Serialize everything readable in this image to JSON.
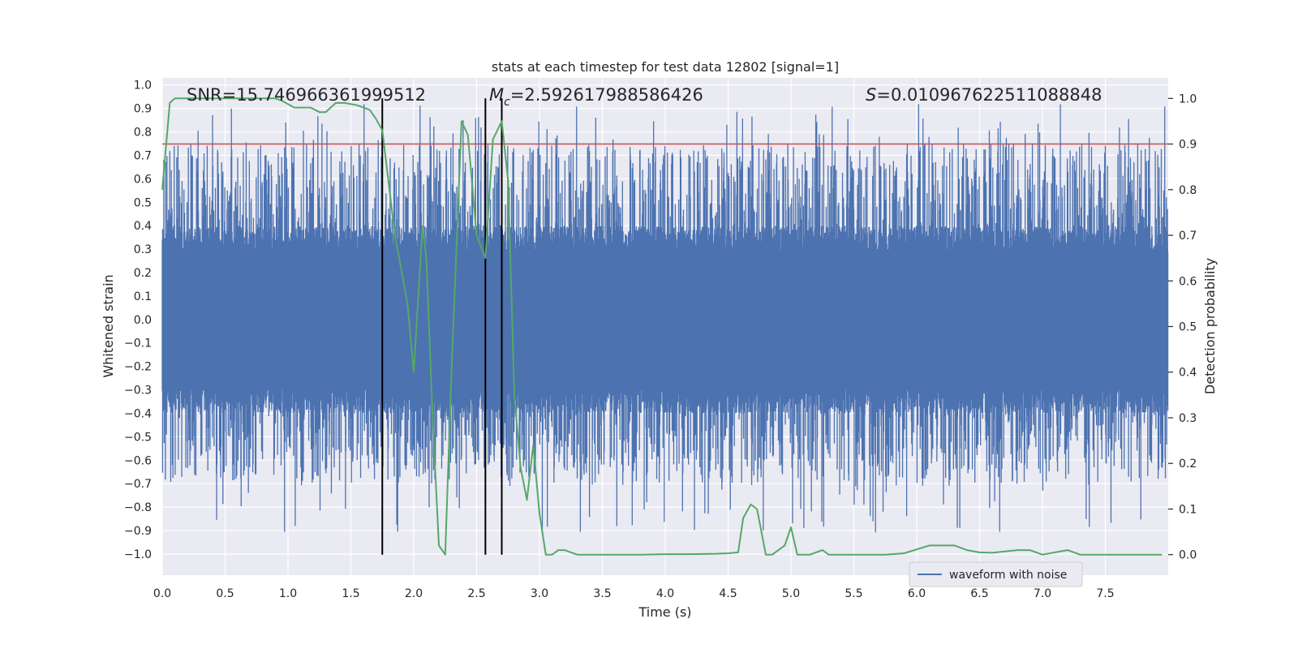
{
  "chart_data": {
    "type": "line",
    "title": "stats at each timestep for test data 12802 [signal=1]",
    "xlabel": "Time (s)",
    "ylabel_left": "Whitened strain",
    "ylabel_right": "Detection probability",
    "xlim": [
      0,
      8
    ],
    "ylim_left": [
      -1.09,
      1.03
    ],
    "ylim_right": [
      -0.045,
      1.045
    ],
    "x_ticks": [
      "0.0",
      "0.5",
      "1.0",
      "1.5",
      "2.0",
      "2.5",
      "3.0",
      "3.5",
      "4.0",
      "4.5",
      "5.0",
      "5.5",
      "6.0",
      "6.5",
      "7.0",
      "7.5"
    ],
    "y_ticks_left": [
      "1.0",
      "0.9",
      "0.8",
      "0.7",
      "0.6",
      "0.5",
      "0.4",
      "0.3",
      "0.2",
      "0.1",
      "0.0",
      "−0.1",
      "−0.2",
      "−0.3",
      "−0.4",
      "−0.5",
      "−0.6",
      "−0.7",
      "−0.8",
      "−0.9",
      "−1.0"
    ],
    "y_ticks_right": [
      "1.0",
      "0.9",
      "0.8",
      "0.7",
      "0.6",
      "0.5",
      "0.4",
      "0.3",
      "0.2",
      "0.1",
      "0.0"
    ],
    "annotations": {
      "snr": "SNR=15.746966361999512",
      "mc_symbol": "M",
      "mc_sub": "c",
      "mc_value": "=2.592617988586426",
      "s_symbol": "S",
      "s_value": "=0.010967622511088848"
    },
    "threshold": 0.9,
    "vlines": [
      1.75,
      2.57,
      2.7
    ],
    "legend": {
      "label": "waveform with noise",
      "placement": "lower-right"
    },
    "series": [
      {
        "name": "waveform with noise",
        "color": "#4c72b0",
        "axis": "left",
        "envelope_note": "dense noise spanning roughly -0.92 to 0.93 over 0 to 8 s"
      },
      {
        "name": "detection probability",
        "color": "#55a868",
        "axis": "right",
        "x": [
          0.0,
          0.06,
          0.1,
          0.2,
          0.5,
          0.9,
          0.95,
          1.05,
          1.18,
          1.25,
          1.3,
          1.38,
          1.45,
          1.55,
          1.65,
          1.7,
          1.75,
          1.85,
          1.95,
          2.0,
          2.07,
          2.1,
          2.15,
          2.2,
          2.25,
          2.3,
          2.38,
          2.43,
          2.5,
          2.57,
          2.63,
          2.7,
          2.75,
          2.8,
          2.85,
          2.9,
          2.95,
          3.0,
          3.05,
          3.1,
          3.15,
          3.2,
          3.25,
          3.3,
          3.4,
          3.6,
          3.8,
          4.0,
          4.2,
          4.4,
          4.5,
          4.58,
          4.62,
          4.68,
          4.73,
          4.8,
          4.85,
          4.9,
          4.95,
          5.0,
          5.05,
          5.1,
          5.15,
          5.25,
          5.3,
          5.4,
          5.5,
          5.6,
          5.75,
          5.9,
          6.1,
          6.2,
          6.3,
          6.4,
          6.5,
          6.6,
          6.8,
          6.9,
          7.0,
          7.1,
          7.2,
          7.3,
          7.5,
          7.7,
          7.95
        ],
        "values": [
          0.8,
          0.99,
          1.0,
          1.0,
          1.0,
          1.0,
          0.995,
          0.98,
          0.98,
          0.97,
          0.97,
          0.99,
          0.99,
          0.985,
          0.975,
          0.955,
          0.93,
          0.7,
          0.55,
          0.4,
          0.72,
          0.65,
          0.3,
          0.02,
          0.0,
          0.4,
          0.95,
          0.92,
          0.7,
          0.65,
          0.91,
          0.95,
          0.82,
          0.35,
          0.19,
          0.12,
          0.24,
          0.09,
          0.0,
          0.0,
          0.01,
          0.01,
          0.005,
          0.0,
          0.0,
          0.0,
          0.0,
          0.001,
          0.001,
          0.002,
          0.003,
          0.005,
          0.08,
          0.11,
          0.1,
          0.0,
          0.0,
          0.01,
          0.02,
          0.06,
          0.0,
          0.0,
          0.0,
          0.01,
          0.0,
          0.0,
          0.0,
          0.0,
          0.0,
          0.003,
          0.02,
          0.02,
          0.02,
          0.01,
          0.005,
          0.004,
          0.01,
          0.01,
          0.0,
          0.005,
          0.01,
          0.0,
          0.0,
          0.0,
          0.0
        ]
      }
    ]
  }
}
